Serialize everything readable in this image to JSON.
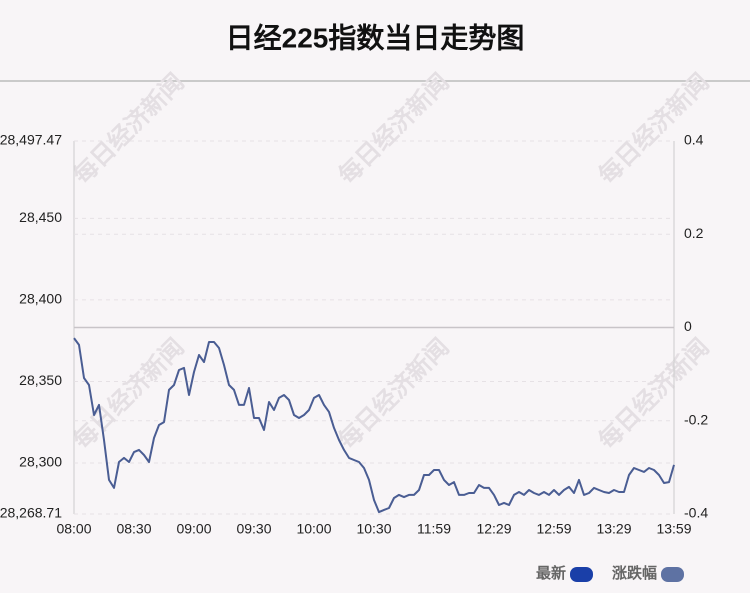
{
  "chart_data": {
    "type": "line",
    "title": "日经225指数当日走势图",
    "watermark": "每日经济新闻",
    "categories": [
      "08:00",
      null,
      null,
      null,
      null,
      null,
      null,
      null,
      null,
      null,
      null,
      null,
      "08:30",
      null,
      null,
      null,
      null,
      null,
      null,
      null,
      null,
      null,
      null,
      null,
      "09:00",
      null,
      null,
      null,
      null,
      null,
      null,
      null,
      null,
      null,
      null,
      null,
      "09:30",
      null,
      null,
      null,
      null,
      null,
      null,
      null,
      null,
      null,
      null,
      null,
      "10:00",
      null,
      null,
      null,
      null,
      null,
      null,
      null,
      null,
      null,
      null,
      null,
      "10:30",
      null,
      null,
      null,
      null,
      null,
      null,
      null,
      null,
      null,
      null,
      null,
      "11:59",
      null,
      null,
      null,
      null,
      null,
      null,
      null,
      null,
      null,
      null,
      null,
      "12:29",
      null,
      null,
      null,
      null,
      null,
      null,
      null,
      null,
      null,
      null,
      null,
      "12:59",
      null,
      null,
      null,
      null,
      null,
      null,
      null,
      null,
      null,
      null,
      null,
      "13:29",
      null,
      null,
      null,
      null,
      null,
      null,
      null,
      null,
      null,
      null,
      null,
      "13:59"
    ],
    "series": [
      {
        "name": "最新",
        "color": "#4a5d93",
        "legend_color": "#1a3fa8",
        "values": [
          28376.6,
          28372.4,
          28352.1,
          28347.8,
          28329.4,
          28335.6,
          28314.1,
          28289.6,
          28284.7,
          28300.6,
          28303.1,
          28300.6,
          28306.7,
          28308.0,
          28304.9,
          28300.6,
          28315.3,
          28323.3,
          28325.1,
          28344.8,
          28347.8,
          28357.0,
          28358.3,
          28341.7,
          28355.8,
          28366.2,
          28361.9,
          28374.2,
          28374.2,
          28370.5,
          28360.1,
          28347.8,
          28344.8,
          28335.6,
          28335.6,
          28346.0,
          28327.6,
          28327.6,
          28320.2,
          28337.4,
          28332.5,
          28339.9,
          28341.7,
          28338.6,
          28329.4,
          28327.6,
          28329.4,
          28332.5,
          28339.9,
          28341.7,
          28335.6,
          28331.3,
          28321.5,
          28314.1,
          28308.0,
          28303.1,
          28301.8,
          28300.6,
          28296.9,
          28289.6,
          28277.3,
          28269.9,
          28271.2,
          28272.4,
          28278.5,
          28280.4,
          28279.1,
          28280.4,
          28280.4,
          28283.4,
          28292.6,
          28292.6,
          28295.7,
          28295.7,
          28289.6,
          28286.5,
          28288.3,
          28280.4,
          28280.4,
          28281.6,
          28281.6,
          28286.5,
          28284.7,
          28284.7,
          28280.4,
          28274.2,
          28275.5,
          28274.2,
          28280.4,
          28282.2,
          28280.4,
          28283.4,
          28281.6,
          28280.4,
          28282.2,
          28280.4,
          28283.4,
          28280.4,
          28283.4,
          28285.3,
          28281.6,
          28289.6,
          28280.4,
          28281.6,
          28284.7,
          28283.4,
          28282.2,
          28281.6,
          28283.4,
          28282.2,
          28282.2,
          28292.6,
          28296.9,
          28295.7,
          28294.5,
          28296.9,
          28295.7,
          28292.6,
          28287.7,
          28288.3,
          28298.8
        ]
      }
    ],
    "y2_series": {
      "name": "涨跌幅",
      "color": "#5e72a3"
    },
    "ylim": [
      28268.71,
      28497.47
    ],
    "yticks": [
      {
        "value": 28268.71,
        "label": "28,268.71"
      },
      {
        "value": 28300,
        "label": "28,300"
      },
      {
        "value": 28350,
        "label": "28,350"
      },
      {
        "value": 28400,
        "label": "28,400"
      },
      {
        "value": 28450,
        "label": "28,450"
      },
      {
        "value": 28497.47,
        "label": "28,497.47"
      }
    ],
    "y2lim": [
      -0.4,
      0.4
    ],
    "y2ticks": [
      -0.4,
      -0.2,
      0,
      0.2,
      0.4
    ],
    "grid": true
  }
}
